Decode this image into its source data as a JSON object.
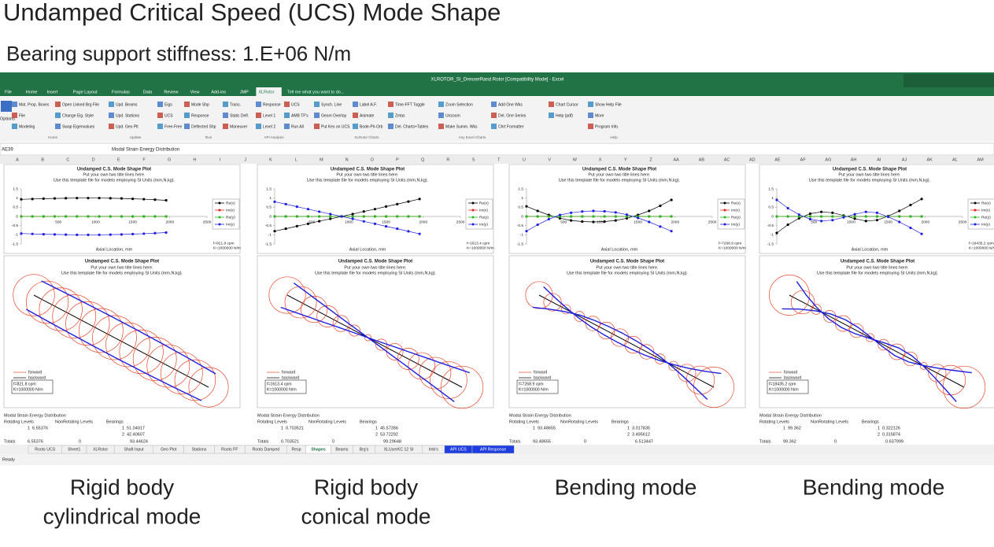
{
  "header": {
    "title": "Undamped Critical Speed (UCS) Mode Shape",
    "subtitle": "Bearing support stiffness: 1.E+06 N/m"
  },
  "excel": {
    "window_title": "XLROTOR_SI_DresserRand Rotor [Compatibility Mode] - Excel",
    "ribbon_tabs": [
      "File",
      "Home",
      "Insert",
      "Page Layout",
      "Formulas",
      "Data",
      "Review",
      "View",
      "Add-ins",
      "JMP",
      "XLRotor"
    ],
    "tell_me": "Tell me what you want to do...",
    "options": "Options",
    "ribbon_columns": [
      [
        "Mat. Prop. Boxes",
        "File",
        "Modeling"
      ],
      [
        "Open Linked Brg File",
        "Change Eig. Style",
        "Swap Eigenvalues"
      ],
      [
        "Upd. Beams",
        "Upd. Stations",
        "Upd. Geo Plt"
      ],
      [
        "Eigs",
        "UCS",
        "Free-Free"
      ],
      [
        "Mode Shp",
        "Response",
        "Deflected Shp"
      ],
      [
        "Trans.",
        "Static Defl.",
        "Maneuver"
      ],
      [
        "Response",
        "Level 1",
        "Level 2"
      ],
      [
        "UCS",
        "AMB TF's",
        "Run All"
      ],
      [
        "Synch. Line",
        "Geom Overlay",
        "Put Kes on UCS"
      ],
      [
        "Label A.F.",
        "Animate",
        "Bode-Plr-Orb"
      ],
      [
        "Time-FFT Toggle",
        "Zetas",
        "Del. Charts+Tables"
      ],
      [
        "Zoom Selection",
        "Unzoom",
        "Make Summ. Wks"
      ],
      [
        "Add One Wks",
        "Del. One Series",
        "Chrt Formatter"
      ],
      [
        "Chart Cursor",
        "Help (pdf)"
      ],
      [
        "Show Help File",
        "More",
        "Program Info."
      ]
    ],
    "ribbon_groups": [
      "Home",
      "Update",
      "Run",
      "API Analysis",
      "XLRotor Charts",
      "Any Excel Charts",
      "Help"
    ],
    "name_box": "AE39",
    "formula": "Modal Strain Energy Distribution",
    "columns": [
      "A",
      "B",
      "C",
      "D",
      "E",
      "F",
      "G",
      "H",
      "I",
      "J",
      "K",
      "L",
      "M",
      "N",
      "O",
      "P",
      "Q",
      "R",
      "S",
      "T",
      "U",
      "V",
      "W",
      "X",
      "Y",
      "Z",
      "AA",
      "AB",
      "AC",
      "AD",
      "AE",
      "AF",
      "AG",
      "AH",
      "AI",
      "AJ",
      "AK",
      "AL",
      "AM"
    ],
    "sheet_tabs": [
      "Roots UCS",
      "Sheet1",
      "XLRotor",
      "Shaft Input",
      "Geo Plot",
      "Stations",
      "Roots FF",
      "Roots Damped",
      "Resp",
      "Shapes",
      "Beams",
      "Brg's",
      "XLUserKC 12 SI",
      "Imb's",
      "API UCS",
      "API Response"
    ],
    "active_sheet": "Shapes",
    "highlight_sheets": [
      "API UCS",
      "API Response"
    ],
    "status": "Ready"
  },
  "mode_plot": {
    "title": "Undamped C.S. Mode Shape Plot",
    "subtitle_lines": [
      "Put your own two title lines here.",
      "Use this template file for models employing SI Units (mm,N,kg)."
    ],
    "x_label": "Axial Location, mm",
    "xlim": [
      0,
      2500
    ],
    "ylim": [
      -1.5,
      1.5
    ],
    "xticks": [
      500,
      1000,
      1500,
      2000,
      2500
    ],
    "yticks": [
      1.5,
      1,
      0.5,
      0,
      -0.5,
      -1,
      -1.5
    ],
    "x": [
      0,
      150,
      300,
      450,
      600,
      750,
      900,
      1050,
      1200,
      1350,
      1500,
      1650,
      1800,
      1950
    ],
    "series": [
      {
        "name": "Re(x)",
        "color": "#000000"
      },
      {
        "name": "Im(x)",
        "color": "#e02020"
      },
      {
        "name": "Re(y)",
        "color": "#22bb22"
      },
      {
        "name": "Im(y)",
        "color": "#1f1fe0"
      }
    ],
    "orbit_legend": [
      {
        "name": "forward",
        "color": "#e8442a"
      },
      {
        "name": "backward",
        "color": "#000000"
      }
    ]
  },
  "energy_labels": {
    "title": "Modal Strain Energy Distribution",
    "rotating": "Rotating Levels",
    "nonrotating": "NonRotating Levels",
    "bearings": "Bearings",
    "totals": "Totals"
  },
  "panels": [
    {
      "freq": "f=821.8 cpm",
      "stiff": "K=1000000 N/m",
      "values": [
        [
          0.93,
          0.95,
          0.97,
          0.98,
          0.99,
          1,
          1,
          1,
          0.99,
          0.98,
          0.96,
          0.94,
          0.91,
          0.88
        ],
        [
          0,
          0,
          0,
          0,
          0,
          0,
          0,
          0,
          0,
          0,
          0,
          0,
          0,
          0
        ],
        [
          0,
          0,
          0,
          0,
          0,
          0,
          0,
          0,
          0,
          0,
          0,
          0,
          0,
          0
        ],
        [
          -0.93,
          -0.95,
          -0.97,
          -0.98,
          -0.99,
          -1,
          -1,
          -1,
          -0.99,
          -0.98,
          -0.96,
          -0.94,
          -0.91,
          -0.88
        ]
      ],
      "rotating": [
        "1",
        "6.55376"
      ],
      "bearings": [
        [
          "1",
          "51.04017"
        ],
        [
          "2",
          "42.40607"
        ]
      ],
      "totals": [
        "6.55376",
        "0",
        "93.44624"
      ]
    },
    {
      "freq": "f=1613.4 cpm",
      "stiff": "K=1000000 N/m",
      "values": [
        [
          -0.8,
          -0.67,
          -0.53,
          -0.4,
          -0.26,
          -0.13,
          0,
          0.13,
          0.27,
          0.4,
          0.54,
          0.67,
          0.81,
          0.95
        ],
        [
          0,
          0,
          0,
          0,
          0,
          0,
          0,
          0,
          0,
          0,
          0,
          0,
          0,
          0
        ],
        [
          0,
          0,
          0,
          0,
          0,
          0,
          0,
          0,
          0,
          0,
          0,
          0,
          0,
          0
        ],
        [
          0.8,
          0.67,
          0.53,
          0.4,
          0.26,
          0.13,
          0,
          -0.13,
          -0.27,
          -0.4,
          -0.54,
          -0.67,
          -0.81,
          -0.95
        ]
      ],
      "rotating": [
        "1",
        "0.703521"
      ],
      "bearings": [
        [
          "1",
          "45.57356"
        ],
        [
          "2",
          "53.72292"
        ]
      ],
      "totals": [
        "0.703521",
        "0",
        "99.29648"
      ]
    },
    {
      "freq": "f=7268.9 cpm",
      "stiff": "K=1000000 N/m",
      "values": [
        [
          0.55,
          0.3,
          0.08,
          -0.1,
          -0.22,
          -0.28,
          -0.3,
          -0.28,
          -0.22,
          -0.1,
          0.08,
          0.3,
          0.58,
          0.9
        ],
        [
          0,
          0,
          0,
          0,
          0,
          0,
          0,
          0,
          0,
          0,
          0,
          0,
          0,
          0
        ],
        [
          0,
          0,
          0,
          0,
          0,
          0,
          0,
          0,
          0,
          0,
          0,
          0,
          0,
          0
        ],
        [
          -0.8,
          -0.45,
          -0.15,
          0.08,
          0.2,
          0.27,
          0.3,
          0.28,
          0.22,
          0.1,
          -0.08,
          -0.3,
          -0.55,
          -0.8
        ]
      ],
      "rotating": [
        "1",
        "93.48655"
      ],
      "bearings": [
        [
          "1",
          "3.017835"
        ],
        [
          "2",
          "3.495612"
        ]
      ],
      "totals": [
        "93.48655",
        "0",
        "6.513447"
      ]
    },
    {
      "freq": "f=18435.2 cpm",
      "stiff": "K=1000000 N/m",
      "values": [
        [
          -0.9,
          -0.45,
          -0.1,
          0.15,
          0.25,
          0.2,
          0.05,
          -0.12,
          -0.25,
          -0.2,
          0.02,
          0.3,
          0.62,
          0.95
        ],
        [
          0,
          0,
          0,
          0,
          0,
          0,
          0,
          0,
          0,
          0,
          0,
          0,
          0,
          0
        ],
        [
          0,
          0,
          0,
          0,
          0,
          0,
          0,
          0,
          0,
          0,
          0,
          0,
          0,
          0
        ],
        [
          0.9,
          0.45,
          0.1,
          -0.15,
          -0.25,
          -0.2,
          -0.05,
          0.12,
          0.25,
          0.2,
          -0.02,
          -0.3,
          -0.62,
          -0.95
        ]
      ],
      "rotating": [
        "1",
        "99.362"
      ],
      "bearings": [
        [
          "1",
          "0.322126"
        ],
        [
          "2",
          "0.315874"
        ]
      ],
      "totals": [
        "99.362",
        "0",
        "0.637999"
      ]
    }
  ],
  "captions": [
    [
      "Rigid body",
      "cylindrical mode"
    ],
    [
      "Rigid body",
      "conical mode"
    ],
    [
      "Bending mode"
    ],
    [
      "Bending mode"
    ]
  ]
}
